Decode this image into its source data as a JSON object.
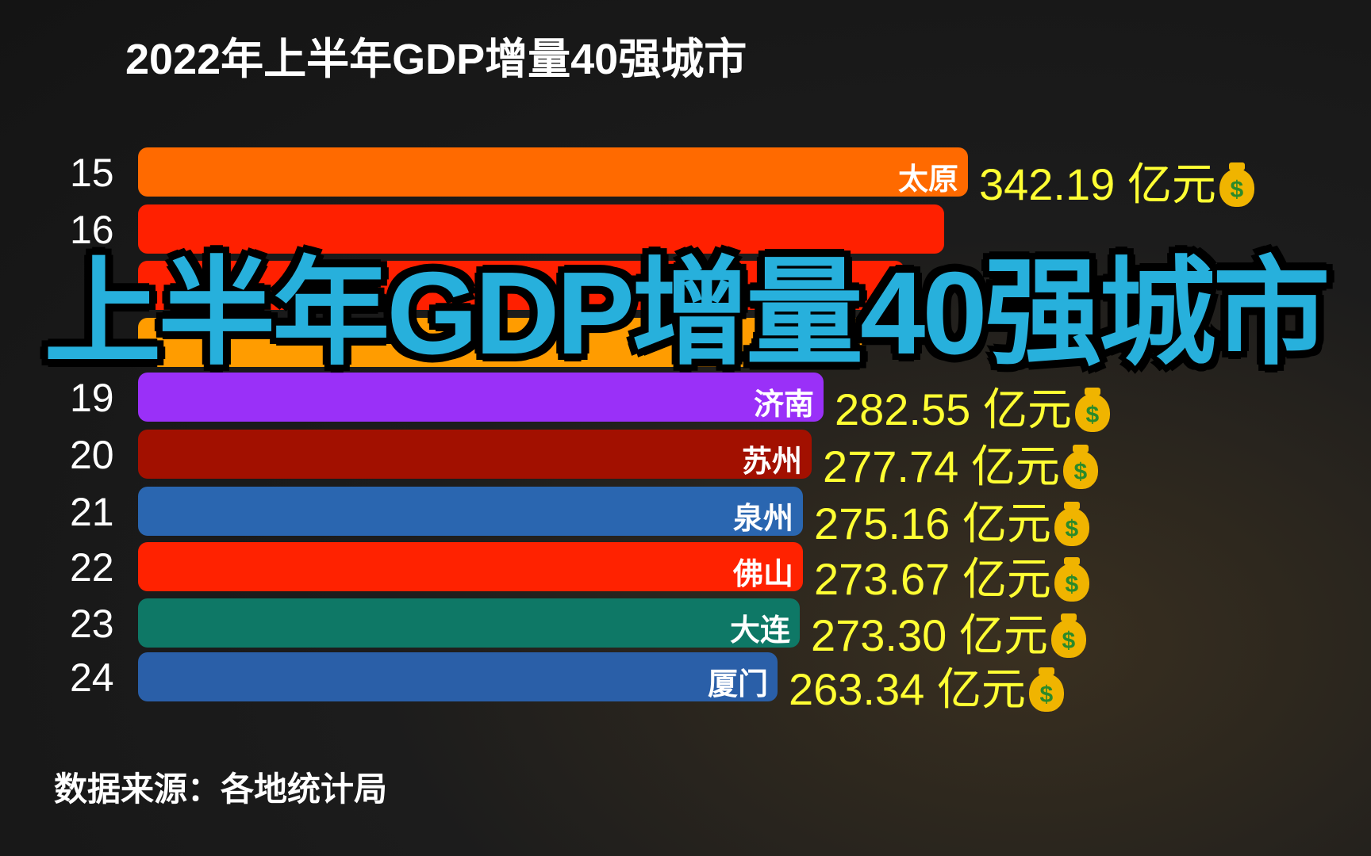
{
  "title": "2022年上半年GDP增量40强城市",
  "overlay_title": "上半年GDP增量40强城市",
  "source": "数据来源：各地统计局",
  "unit": "亿元",
  "rows": [
    {
      "rank": "15",
      "city": "太原",
      "value": "342.19",
      "color": "#ff6a00"
    },
    {
      "rank": "16",
      "city": "",
      "value": "",
      "color": "#ff2000"
    },
    {
      "rank": "",
      "city": "",
      "value": "",
      "color": "#ff2000"
    },
    {
      "rank": "",
      "city": "",
      "value": "",
      "color": "#ff9c00"
    },
    {
      "rank": "19",
      "city": "济南",
      "value": "282.55",
      "color": "#9a30f8"
    },
    {
      "rank": "20",
      "city": "苏州",
      "value": "277.74",
      "color": "#a21000"
    },
    {
      "rank": "21",
      "city": "泉州",
      "value": "275.16",
      "color": "#2a66b0"
    },
    {
      "rank": "22",
      "city": "佛山",
      "value": "273.67",
      "color": "#ff2200"
    },
    {
      "rank": "23",
      "city": "大连",
      "value": "273.30",
      "color": "#0e7866"
    },
    {
      "rank": "24",
      "city": "厦门",
      "value": "263.34",
      "color": "#2a5fa8"
    }
  ],
  "money_bag_icon": "money-bag-icon"
}
